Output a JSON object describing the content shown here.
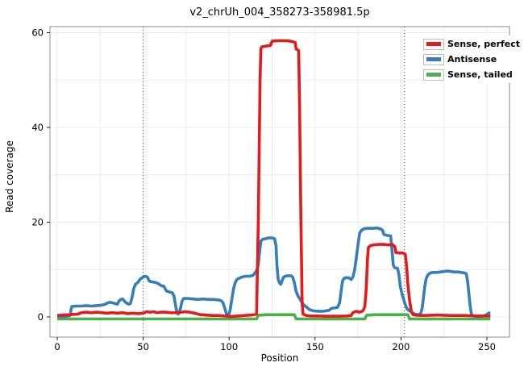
{
  "title": "v2_chrUh_004_358273-358981.5p",
  "chart_data": {
    "type": "line",
    "title": "v2_chrUh_004_358273-358981.5p",
    "xlabel": "Position",
    "ylabel": "Read coverage",
    "xlim": [
      -4,
      264
    ],
    "ylim": [
      -4,
      61
    ],
    "x_ticks": [
      0,
      50,
      100,
      150,
      200,
      250
    ],
    "y_ticks": [
      0,
      20,
      40,
      60
    ],
    "grid": {
      "on": true,
      "vertical_step": 25,
      "horizontal_step": 10
    },
    "dotted_vlines": [
      50,
      202
    ],
    "legend_position": "top-right",
    "series": [
      {
        "name": "Sense, tailed",
        "color": "#4DAF4A",
        "points": [
          [
            0,
            0
          ],
          [
            20,
            0
          ],
          [
            40,
            0
          ],
          [
            60,
            0
          ],
          [
            80,
            0
          ],
          [
            100,
            0
          ],
          [
            110,
            0
          ],
          [
            116,
            0
          ],
          [
            117,
            0.8
          ],
          [
            122,
            0.9
          ],
          [
            127,
            0.9
          ],
          [
            132,
            0.9
          ],
          [
            136,
            0.9
          ],
          [
            138,
            0.9
          ],
          [
            139,
            0
          ],
          [
            145,
            0
          ],
          [
            155,
            0
          ],
          [
            165,
            0
          ],
          [
            173,
            0
          ],
          [
            179,
            0
          ],
          [
            180,
            0.8
          ],
          [
            185,
            0.9
          ],
          [
            190,
            0.9
          ],
          [
            195,
            0.9
          ],
          [
            200,
            0.9
          ],
          [
            204,
            0.9
          ],
          [
            205,
            0
          ],
          [
            213,
            0
          ],
          [
            221,
            0
          ],
          [
            229,
            0
          ],
          [
            237,
            0
          ],
          [
            245,
            0
          ],
          [
            252,
            0
          ]
        ]
      },
      {
        "name": "Antisense",
        "color": "#377EB8",
        "points": [
          [
            0,
            0.1
          ],
          [
            3,
            0.1
          ],
          [
            6,
            0.15
          ],
          [
            7.5,
            0.3
          ],
          [
            8,
            1.5
          ],
          [
            8.5,
            2.2
          ],
          [
            11,
            2.3
          ],
          [
            14,
            2.3
          ],
          [
            17,
            2.4
          ],
          [
            20,
            2.3
          ],
          [
            23,
            2.4
          ],
          [
            26,
            2.5
          ],
          [
            28,
            2.7
          ],
          [
            29.5,
            3
          ],
          [
            31,
            3.1
          ],
          [
            33,
            2.9
          ],
          [
            35,
            2.7
          ],
          [
            36,
            3.4
          ],
          [
            37,
            3.7
          ],
          [
            38,
            3.8
          ],
          [
            39,
            3.4
          ],
          [
            40,
            3
          ],
          [
            41.5,
            2.7
          ],
          [
            42.5,
            2.8
          ],
          [
            43.5,
            4
          ],
          [
            44.5,
            6
          ],
          [
            45.5,
            6.9
          ],
          [
            47,
            7.3
          ],
          [
            48,
            7.9
          ],
          [
            49.5,
            8.3
          ],
          [
            51,
            8.6
          ],
          [
            52.5,
            8.4
          ],
          [
            53.5,
            7.6
          ],
          [
            55,
            7.4
          ],
          [
            57,
            7.3
          ],
          [
            59,
            7
          ],
          [
            60.5,
            6.6
          ],
          [
            62,
            6.5
          ],
          [
            63.5,
            5.5
          ],
          [
            65,
            5.3
          ],
          [
            67,
            5.1
          ],
          [
            68,
            4.3
          ],
          [
            68.8,
            2.5
          ],
          [
            69.6,
            1
          ],
          [
            70.3,
            0.6
          ],
          [
            71,
            0.9
          ],
          [
            71.8,
            2
          ],
          [
            72.6,
            3.3
          ],
          [
            73.5,
            3.9
          ],
          [
            76,
            3.9
          ],
          [
            79,
            3.8
          ],
          [
            82,
            3.7
          ],
          [
            85,
            3.8
          ],
          [
            88,
            3.7
          ],
          [
            91,
            3.7
          ],
          [
            94,
            3.6
          ],
          [
            95.5,
            3.4
          ],
          [
            96.5,
            3
          ],
          [
            97.5,
            1.8
          ],
          [
            98.5,
            0.6
          ],
          [
            99,
            0.3
          ],
          [
            99.8,
            0.4
          ],
          [
            100.6,
            1.5
          ],
          [
            101.5,
            3.5
          ],
          [
            102.5,
            5.8
          ],
          [
            103.5,
            7.2
          ],
          [
            104.5,
            7.9
          ],
          [
            106,
            8.2
          ],
          [
            108,
            8.5
          ],
          [
            110,
            8.6
          ],
          [
            112,
            8.6
          ],
          [
            114,
            8.8
          ],
          [
            115,
            9.3
          ],
          [
            116,
            9.8
          ],
          [
            117,
            11
          ],
          [
            117.8,
            14
          ],
          [
            118.5,
            16
          ],
          [
            119.5,
            16.4
          ],
          [
            121,
            16.5
          ],
          [
            123,
            16.7
          ],
          [
            125,
            16.7
          ],
          [
            126.5,
            16.5
          ],
          [
            127.3,
            15
          ],
          [
            127.8,
            11
          ],
          [
            128.5,
            8
          ],
          [
            129.3,
            7.2
          ],
          [
            130,
            6.9
          ],
          [
            130.8,
            7.6
          ],
          [
            131.5,
            8.3
          ],
          [
            132.5,
            8.6
          ],
          [
            134,
            8.7
          ],
          [
            136,
            8.7
          ],
          [
            137,
            8.4
          ],
          [
            138,
            7.2
          ],
          [
            139,
            5.4
          ],
          [
            140,
            4.5
          ],
          [
            141.5,
            3.6
          ],
          [
            143,
            2.7
          ],
          [
            145,
            2.1
          ],
          [
            147,
            1.5
          ],
          [
            149,
            1.3
          ],
          [
            152,
            1.2
          ],
          [
            155,
            1.2
          ],
          [
            158,
            1.4
          ],
          [
            159.5,
            1.8
          ],
          [
            161,
            1.9
          ],
          [
            163,
            2
          ],
          [
            164.3,
            3
          ],
          [
            165.2,
            5.5
          ],
          [
            166,
            7.6
          ],
          [
            167,
            8.2
          ],
          [
            168.5,
            8.3
          ],
          [
            170,
            8.2
          ],
          [
            171,
            7.9
          ],
          [
            172,
            8.4
          ],
          [
            173,
            9.8
          ],
          [
            174,
            12.5
          ],
          [
            175,
            15.3
          ],
          [
            176,
            17.7
          ],
          [
            177,
            18.3
          ],
          [
            178.5,
            18.6
          ],
          [
            180,
            18.7
          ],
          [
            182,
            18.7
          ],
          [
            184,
            18.7
          ],
          [
            186,
            18.8
          ],
          [
            188,
            18.6
          ],
          [
            189.3,
            18.3
          ],
          [
            190,
            17.4
          ],
          [
            192,
            17.2
          ],
          [
            194,
            17.1
          ],
          [
            194.8,
            14
          ],
          [
            195.5,
            11
          ],
          [
            196.3,
            10.4
          ],
          [
            198,
            10.3
          ],
          [
            198.8,
            9
          ],
          [
            199.6,
            6.5
          ],
          [
            200.5,
            5
          ],
          [
            201.5,
            3.8
          ],
          [
            202.5,
            2.6
          ],
          [
            203.5,
            1.7
          ],
          [
            205,
            1.3
          ],
          [
            206.5,
            0.9
          ],
          [
            208,
            0.6
          ],
          [
            210,
            0.5
          ],
          [
            211.5,
            0.7
          ],
          [
            212.3,
            1.8
          ],
          [
            213,
            3.8
          ],
          [
            213.8,
            6.3
          ],
          [
            214.6,
            8
          ],
          [
            215.5,
            8.8
          ],
          [
            217,
            9.3
          ],
          [
            219,
            9.4
          ],
          [
            221,
            9.4
          ],
          [
            223,
            9.5
          ],
          [
            225,
            9.6
          ],
          [
            227,
            9.7
          ],
          [
            229,
            9.6
          ],
          [
            231,
            9.5
          ],
          [
            233,
            9.5
          ],
          [
            235,
            9.4
          ],
          [
            237,
            9.3
          ],
          [
            238,
            9.1
          ],
          [
            238.8,
            7.5
          ],
          [
            239.5,
            5
          ],
          [
            240.3,
            2.2
          ],
          [
            241,
            0.6
          ],
          [
            242,
            0.2
          ],
          [
            244,
            0.1
          ],
          [
            246,
            0.1
          ],
          [
            248,
            0.2
          ],
          [
            249.5,
            0.4
          ],
          [
            251,
            0.8
          ],
          [
            252,
            0.9
          ]
        ]
      },
      {
        "name": "Sense, perfect",
        "color": "#E41A1C",
        "points": [
          [
            0,
            0.3
          ],
          [
            4,
            0.4
          ],
          [
            8,
            0.5
          ],
          [
            12,
            0.6
          ],
          [
            14,
            0.9
          ],
          [
            17,
            1
          ],
          [
            20,
            0.9
          ],
          [
            23,
            1
          ],
          [
            26,
            0.9
          ],
          [
            29,
            0.8
          ],
          [
            32,
            0.9
          ],
          [
            35,
            0.8
          ],
          [
            38,
            0.9
          ],
          [
            41,
            0.7
          ],
          [
            44,
            0.8
          ],
          [
            47,
            0.7
          ],
          [
            50,
            0.8
          ],
          [
            52,
            1.1
          ],
          [
            54,
            1
          ],
          [
            56,
            1.1
          ],
          [
            58,
            0.9
          ],
          [
            60,
            1
          ],
          [
            63,
            1
          ],
          [
            66,
            0.9
          ],
          [
            69,
            0.9
          ],
          [
            72,
            1
          ],
          [
            74,
            1.1
          ],
          [
            77,
            1
          ],
          [
            80,
            0.8
          ],
          [
            83,
            0.5
          ],
          [
            86,
            0.4
          ],
          [
            90,
            0.3
          ],
          [
            94,
            0.3
          ],
          [
            98,
            0.2
          ],
          [
            101,
            0.1
          ],
          [
            105,
            0.2
          ],
          [
            109,
            0.3
          ],
          [
            113,
            0.4
          ],
          [
            116,
            0.6
          ],
          [
            117,
            20
          ],
          [
            118,
            50
          ],
          [
            118.5,
            56.5
          ],
          [
            119,
            57
          ],
          [
            122,
            57.2
          ],
          [
            124,
            57.3
          ],
          [
            125,
            58.2
          ],
          [
            128,
            58.3
          ],
          [
            131,
            58.3
          ],
          [
            134,
            58.3
          ],
          [
            137,
            58.1
          ],
          [
            138.5,
            57.9
          ],
          [
            139,
            56.6
          ],
          [
            140.5,
            56.2
          ],
          [
            141,
            45
          ],
          [
            141.8,
            20
          ],
          [
            142.5,
            3
          ],
          [
            143,
            0.6
          ],
          [
            145,
            0.3
          ],
          [
            148,
            0.2
          ],
          [
            152,
            0.2
          ],
          [
            156,
            0.15
          ],
          [
            160,
            0.15
          ],
          [
            164,
            0.15
          ],
          [
            168,
            0.2
          ],
          [
            171,
            0.3
          ],
          [
            172,
            0.9
          ],
          [
            174,
            1.2
          ],
          [
            175.5,
            1
          ],
          [
            177,
            1.1
          ],
          [
            178,
            1.4
          ],
          [
            179,
            2.2
          ],
          [
            179.8,
            6
          ],
          [
            180.5,
            12
          ],
          [
            181,
            14.6
          ],
          [
            182,
            15
          ],
          [
            184,
            15.2
          ],
          [
            187,
            15.3
          ],
          [
            190,
            15.3
          ],
          [
            193,
            15.2
          ],
          [
            195,
            15.3
          ],
          [
            196.5,
            14.8
          ],
          [
            197,
            13.6
          ],
          [
            199,
            13.5
          ],
          [
            201,
            13.5
          ],
          [
            202.5,
            13.3
          ],
          [
            203.2,
            11
          ],
          [
            204,
            7
          ],
          [
            205,
            3.5
          ],
          [
            206,
            1.2
          ],
          [
            207,
            0.5
          ],
          [
            209,
            0.35
          ],
          [
            213,
            0.3
          ],
          [
            217,
            0.35
          ],
          [
            221,
            0.4
          ],
          [
            225,
            0.35
          ],
          [
            229,
            0.3
          ],
          [
            233,
            0.3
          ],
          [
            237,
            0.3
          ],
          [
            241,
            0.25
          ],
          [
            245,
            0.2
          ],
          [
            249,
            0.2
          ],
          [
            252,
            0.2
          ]
        ]
      }
    ],
    "legend_order": [
      "Sense, perfect",
      "Antisense",
      "Sense, tailed"
    ]
  },
  "colors": {
    "grid": "#ececec",
    "panel_border": "#8a8a8a",
    "tick": "#222222",
    "dotted_line": "#444444"
  }
}
